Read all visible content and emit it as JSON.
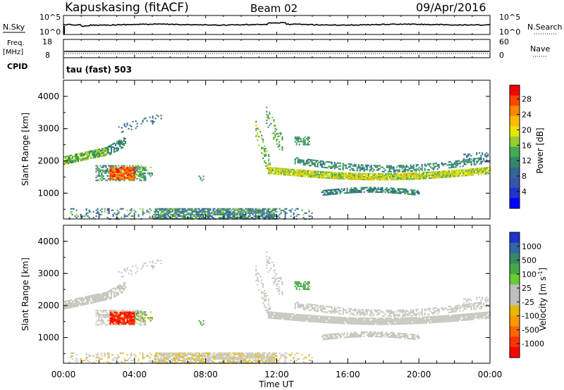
{
  "header": {
    "station": "Kapuskasing (fitACF)",
    "beam": "Beam 02",
    "date": "09/Apr/2016"
  },
  "top_panels": {
    "nsky_label": "N.Sky",
    "nsky_ticks": [
      "10^5",
      "10^0"
    ],
    "nsearch_label": "N.Search",
    "nsearch_ticks": [
      "10^5",
      "10^0"
    ],
    "freq_label_1": "Freq.",
    "freq_label_2": "[MHz]",
    "freq_ticks": [
      "18",
      "8"
    ],
    "nave_label": "Nave",
    "nave_ticks": [
      "60",
      "0"
    ],
    "cpid_label": "CPID",
    "cpid_value": "tau (fast) 503"
  },
  "power_colorbar": {
    "label": "Power [dB]",
    "ticks": [
      "28",
      "24",
      "20",
      "16",
      "12",
      "8",
      "4"
    ],
    "colors": [
      "#ff0000",
      "#ff4400",
      "#ff8800",
      "#ffbb00",
      "#e6e600",
      "#99cc33",
      "#44aa55",
      "#338866",
      "#336699",
      "#3355aa",
      "#2233cc",
      "#0000ff"
    ]
  },
  "velocity_colorbar": {
    "label": "Velocity [m s",
    "label_sup": "-1",
    "label_end": "]",
    "ticks": [
      "1000",
      "500",
      "100",
      "25",
      "-25",
      "-100",
      "-500",
      "-1000"
    ],
    "colors": [
      "#2233cc",
      "#3366aa",
      "#338866",
      "#44aa44",
      "#66cc33",
      "#bfbfbf",
      "#bfbfbf",
      "#e6b800",
      "#ff9900",
      "#ff6600",
      "#ff3300",
      "#ff0000"
    ]
  },
  "x_axis": {
    "label": "Time UT",
    "ticks": [
      "00:00",
      "04:00",
      "08:00",
      "12:00",
      "16:00",
      "20:00",
      "00:00"
    ]
  },
  "chart_data": [
    {
      "type": "line",
      "title": "N.Sky",
      "x_range_hours": [
        0,
        24
      ],
      "ylim": [
        1,
        100000
      ],
      "log_scale": true
    },
    {
      "type": "heatmap",
      "title": "",
      "quantity": "Power",
      "xlabel": "",
      "ylabel": "Slant Range [km]",
      "xlim_hours": [
        0,
        24
      ],
      "ylim": [
        200,
        4500
      ],
      "yticks": [
        1000,
        2000,
        3000,
        4000
      ],
      "colorbar_label": "Power [dB]",
      "colorbar_range": [
        0,
        32
      ]
    },
    {
      "type": "heatmap",
      "title": "",
      "quantity": "Velocity",
      "xlabel": "Time UT",
      "ylabel": "Slant Range [km]",
      "xlim_hours": [
        0,
        24
      ],
      "ylim": [
        200,
        4500
      ],
      "yticks": [
        1000,
        2000,
        3000,
        4000
      ],
      "colorbar_label": "Velocity [m s-1]",
      "colorbar_range": [
        -1000,
        1000
      ]
    }
  ]
}
